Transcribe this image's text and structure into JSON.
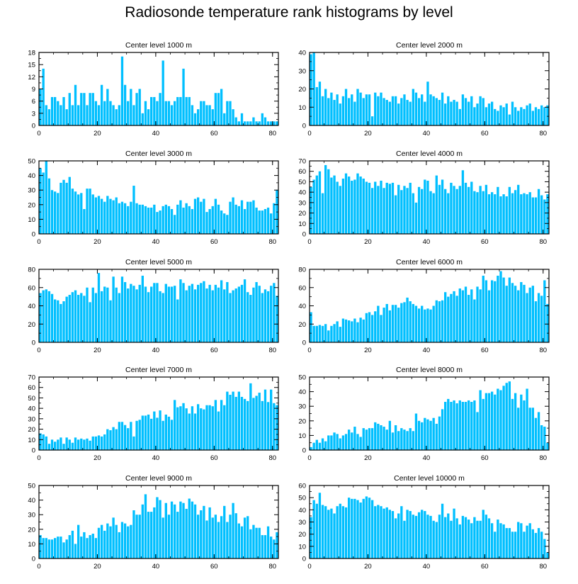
{
  "title": "Radiosonde temperature rank histograms by level",
  "colors": {
    "bar": "#00BFFF",
    "axis": "#000000"
  },
  "chart_data": [
    {
      "type": "bar",
      "title": "Center level 1000 m",
      "xlim": [
        0,
        82
      ],
      "ylim": [
        0,
        18
      ],
      "xticks": [
        0,
        20,
        40,
        60,
        80
      ],
      "yticks": [
        0,
        3,
        6,
        9,
        12,
        15,
        18
      ],
      "values": [
        9,
        14,
        5,
        4,
        7,
        7,
        6,
        5,
        7,
        4,
        8,
        5,
        10,
        5,
        8,
        8,
        5,
        8,
        8,
        6,
        5,
        10,
        6,
        9,
        6,
        5,
        4,
        5,
        17,
        10,
        6,
        9,
        5,
        8,
        9,
        3,
        6,
        4,
        7,
        7,
        6,
        8,
        16,
        6,
        6,
        5,
        6,
        7,
        7,
        14,
        7,
        7,
        5,
        3,
        4,
        6,
        6,
        5,
        5,
        4,
        8,
        8,
        9,
        3,
        6,
        6,
        4,
        2,
        1,
        3,
        1,
        1,
        1,
        2,
        1,
        1,
        3,
        2,
        1,
        1,
        1,
        1
      ]
    },
    {
      "type": "bar",
      "title": "Center level 2000 m",
      "xlim": [
        0,
        82
      ],
      "ylim": [
        0,
        40
      ],
      "xticks": [
        0,
        20,
        40,
        60,
        80
      ],
      "yticks": [
        0,
        10,
        20,
        30,
        40
      ],
      "values": [
        39,
        40,
        21,
        24,
        16,
        20,
        15,
        18,
        14,
        17,
        12,
        16,
        20,
        15,
        17,
        13,
        20,
        18,
        15,
        17,
        17,
        5,
        18,
        16,
        18,
        15,
        14,
        13,
        16,
        16,
        12,
        15,
        17,
        14,
        13,
        20,
        18,
        15,
        17,
        13,
        24,
        17,
        16,
        15,
        14,
        18,
        12,
        16,
        13,
        14,
        13,
        9,
        17,
        15,
        13,
        16,
        10,
        12,
        16,
        15,
        10,
        12,
        13,
        9,
        8,
        11,
        10,
        12,
        6,
        13,
        10,
        8,
        10,
        9,
        11,
        12,
        8,
        10,
        9,
        11,
        10,
        11
      ]
    },
    {
      "type": "bar",
      "title": "Center level 3000 m",
      "xlim": [
        0,
        82
      ],
      "ylim": [
        0,
        50
      ],
      "xticks": [
        0,
        20,
        40,
        60,
        80
      ],
      "yticks": [
        0,
        10,
        20,
        30,
        40,
        50
      ],
      "values": [
        45,
        42,
        50,
        38,
        30,
        29,
        28,
        35,
        37,
        35,
        39,
        31,
        29,
        27,
        28,
        17,
        31,
        31,
        27,
        25,
        26,
        24,
        22,
        26,
        24,
        23,
        25,
        21,
        22,
        21,
        19,
        22,
        33,
        21,
        20,
        20,
        19,
        18,
        18,
        20,
        15,
        16,
        19,
        20,
        19,
        17,
        13,
        20,
        23,
        18,
        21,
        19,
        17,
        24,
        25,
        22,
        24,
        15,
        17,
        19,
        24,
        20,
        16,
        14,
        13,
        22,
        25,
        20,
        19,
        23,
        17,
        22,
        22,
        23,
        18,
        16,
        16,
        17,
        18,
        14,
        21,
        30
      ]
    },
    {
      "type": "bar",
      "title": "Center level 4000 m",
      "xlim": [
        0,
        82
      ],
      "ylim": [
        0,
        70
      ],
      "xticks": [
        0,
        20,
        40,
        60,
        80
      ],
      "yticks": [
        0,
        10,
        20,
        30,
        40,
        50,
        60,
        70
      ],
      "values": [
        45,
        52,
        56,
        60,
        39,
        66,
        62,
        54,
        56,
        50,
        46,
        53,
        58,
        55,
        51,
        52,
        58,
        55,
        53,
        50,
        49,
        44,
        50,
        46,
        51,
        44,
        49,
        48,
        49,
        37,
        47,
        42,
        46,
        44,
        49,
        39,
        30,
        45,
        43,
        52,
        51,
        41,
        39,
        56,
        47,
        52,
        43,
        39,
        49,
        46,
        43,
        46,
        61,
        49,
        45,
        50,
        41,
        40,
        46,
        41,
        47,
        38,
        40,
        38,
        45,
        36,
        38,
        36,
        45,
        39,
        42,
        47,
        38,
        39,
        38,
        40,
        35,
        35,
        43,
        37,
        33,
        38
      ]
    },
    {
      "type": "bar",
      "title": "Center level 5000 m",
      "xlim": [
        0,
        82
      ],
      "ylim": [
        0,
        80
      ],
      "xticks": [
        0,
        20,
        40,
        60,
        80
      ],
      "yticks": [
        0,
        20,
        40,
        60,
        80
      ],
      "values": [
        54,
        57,
        58,
        56,
        53,
        47,
        46,
        42,
        45,
        50,
        52,
        55,
        57,
        52,
        54,
        51,
        60,
        44,
        60,
        54,
        76,
        56,
        61,
        60,
        46,
        72,
        60,
        54,
        72,
        66,
        59,
        64,
        62,
        58,
        63,
        73,
        61,
        55,
        61,
        65,
        65,
        56,
        54,
        64,
        61,
        61,
        62,
        47,
        69,
        65,
        57,
        62,
        64,
        58,
        63,
        65,
        67,
        59,
        63,
        57,
        63,
        60,
        68,
        58,
        66,
        54,
        57,
        59,
        61,
        63,
        69,
        55,
        52,
        60,
        66,
        62,
        54,
        58,
        56,
        62,
        65,
        51
      ]
    },
    {
      "type": "bar",
      "title": "Center level 6000 m",
      "xlim": [
        0,
        82
      ],
      "ylim": [
        0,
        80
      ],
      "xticks": [
        0,
        20,
        40,
        60,
        80
      ],
      "yticks": [
        0,
        20,
        40,
        60,
        80
      ],
      "values": [
        33,
        18,
        18,
        19,
        18,
        20,
        13,
        18,
        20,
        23,
        17,
        26,
        25,
        24,
        23,
        26,
        22,
        27,
        25,
        32,
        33,
        30,
        34,
        40,
        30,
        38,
        42,
        35,
        41,
        41,
        38,
        43,
        44,
        49,
        45,
        42,
        40,
        37,
        40,
        36,
        37,
        36,
        40,
        46,
        45,
        46,
        55,
        50,
        53,
        56,
        51,
        59,
        57,
        61,
        52,
        58,
        47,
        61,
        58,
        73,
        68,
        57,
        68,
        67,
        73,
        78,
        71,
        62,
        71,
        65,
        62,
        57,
        66,
        63,
        54,
        60,
        62,
        45,
        54,
        51,
        68,
        42
      ]
    },
    {
      "type": "bar",
      "title": "Center level 7000 m",
      "xlim": [
        0,
        82
      ],
      "ylim": [
        0,
        70
      ],
      "xticks": [
        0,
        20,
        40,
        60,
        80
      ],
      "yticks": [
        0,
        10,
        20,
        30,
        40,
        50,
        60,
        70
      ],
      "values": [
        16,
        15,
        13,
        6,
        10,
        8,
        10,
        12,
        6,
        12,
        10,
        7,
        12,
        10,
        11,
        10,
        11,
        9,
        13,
        13,
        14,
        13,
        15,
        20,
        19,
        22,
        20,
        27,
        27,
        24,
        21,
        27,
        13,
        28,
        29,
        33,
        33,
        34,
        30,
        37,
        31,
        38,
        28,
        34,
        32,
        29,
        48,
        41,
        42,
        45,
        40,
        35,
        42,
        35,
        44,
        40,
        39,
        43,
        43,
        42,
        48,
        37,
        48,
        43,
        56,
        53,
        56,
        51,
        56,
        51,
        49,
        47,
        64,
        50,
        52,
        55,
        47,
        58,
        46,
        58,
        45,
        43
      ]
    },
    {
      "type": "bar",
      "title": "Center level 8000 m",
      "xlim": [
        0,
        82
      ],
      "ylim": [
        0,
        50
      ],
      "xticks": [
        0,
        20,
        40,
        60,
        80
      ],
      "yticks": [
        0,
        10,
        20,
        30,
        40,
        50
      ],
      "values": [
        2,
        5,
        7,
        5,
        8,
        6,
        10,
        10,
        12,
        11,
        8,
        10,
        11,
        14,
        12,
        16,
        11,
        9,
        15,
        14,
        15,
        15,
        19,
        18,
        17,
        16,
        14,
        20,
        12,
        17,
        13,
        15,
        14,
        13,
        15,
        13,
        25,
        20,
        19,
        22,
        21,
        20,
        22,
        18,
        23,
        28,
        33,
        35,
        33,
        34,
        32,
        34,
        33,
        33,
        34,
        33,
        34,
        26,
        41,
        35,
        39,
        39,
        40,
        38,
        42,
        41,
        44,
        46,
        47,
        35,
        39,
        29,
        38,
        34,
        42,
        29,
        29,
        22,
        26,
        17,
        16,
        5
      ]
    },
    {
      "type": "bar",
      "title": "Center level 9000 m",
      "xlim": [
        0,
        82
      ],
      "ylim": [
        0,
        50
      ],
      "xticks": [
        0,
        20,
        40,
        60,
        80
      ],
      "yticks": [
        0,
        10,
        20,
        30,
        40,
        50
      ],
      "values": [
        16,
        14,
        14,
        13,
        13,
        14,
        15,
        15,
        11,
        13,
        16,
        19,
        10,
        23,
        15,
        18,
        14,
        16,
        17,
        14,
        21,
        23,
        19,
        24,
        22,
        28,
        23,
        18,
        25,
        24,
        22,
        23,
        33,
        30,
        30,
        37,
        44,
        32,
        32,
        35,
        42,
        40,
        28,
        38,
        30,
        39,
        37,
        32,
        39,
        38,
        34,
        41,
        39,
        37,
        30,
        33,
        36,
        26,
        35,
        28,
        30,
        25,
        29,
        36,
        25,
        30,
        38,
        31,
        24,
        22,
        28,
        29,
        20,
        23,
        21,
        21,
        16,
        16,
        22,
        15,
        13,
        18
      ]
    },
    {
      "type": "bar",
      "title": "Center level 10000 m",
      "xlim": [
        0,
        82
      ],
      "ylim": [
        0,
        60
      ],
      "xticks": [
        0,
        20,
        40,
        60,
        80
      ],
      "yticks": [
        0,
        10,
        20,
        30,
        40,
        50,
        60
      ],
      "values": [
        34,
        48,
        45,
        54,
        44,
        43,
        40,
        41,
        37,
        43,
        45,
        43,
        42,
        50,
        49,
        49,
        48,
        46,
        49,
        51,
        50,
        48,
        43,
        44,
        43,
        41,
        42,
        40,
        39,
        33,
        37,
        43,
        31,
        40,
        39,
        36,
        35,
        38,
        40,
        39,
        36,
        35,
        31,
        30,
        36,
        45,
        34,
        37,
        31,
        41,
        33,
        28,
        35,
        34,
        32,
        29,
        34,
        31,
        31,
        40,
        36,
        33,
        29,
        22,
        32,
        29,
        28,
        25,
        25,
        22,
        22,
        30,
        29,
        22,
        27,
        29,
        24,
        21,
        25,
        22,
        16,
        5
      ]
    }
  ]
}
